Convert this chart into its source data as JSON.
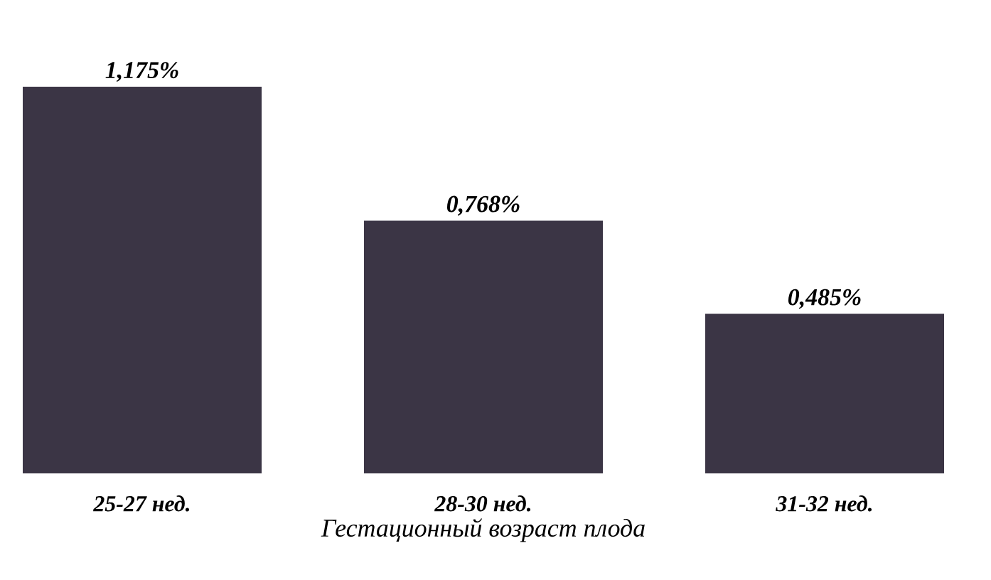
{
  "chart_data": {
    "type": "bar",
    "xlabel": "Гестационный возраст плода",
    "categories": [
      "25-27 нед.",
      "28-30 нед.",
      "31-32 нед."
    ],
    "values": [
      1.175,
      0.768,
      0.485
    ],
    "value_labels": [
      "1,175%",
      "0,768%",
      "0,485%"
    ],
    "color": "#3b3545"
  }
}
